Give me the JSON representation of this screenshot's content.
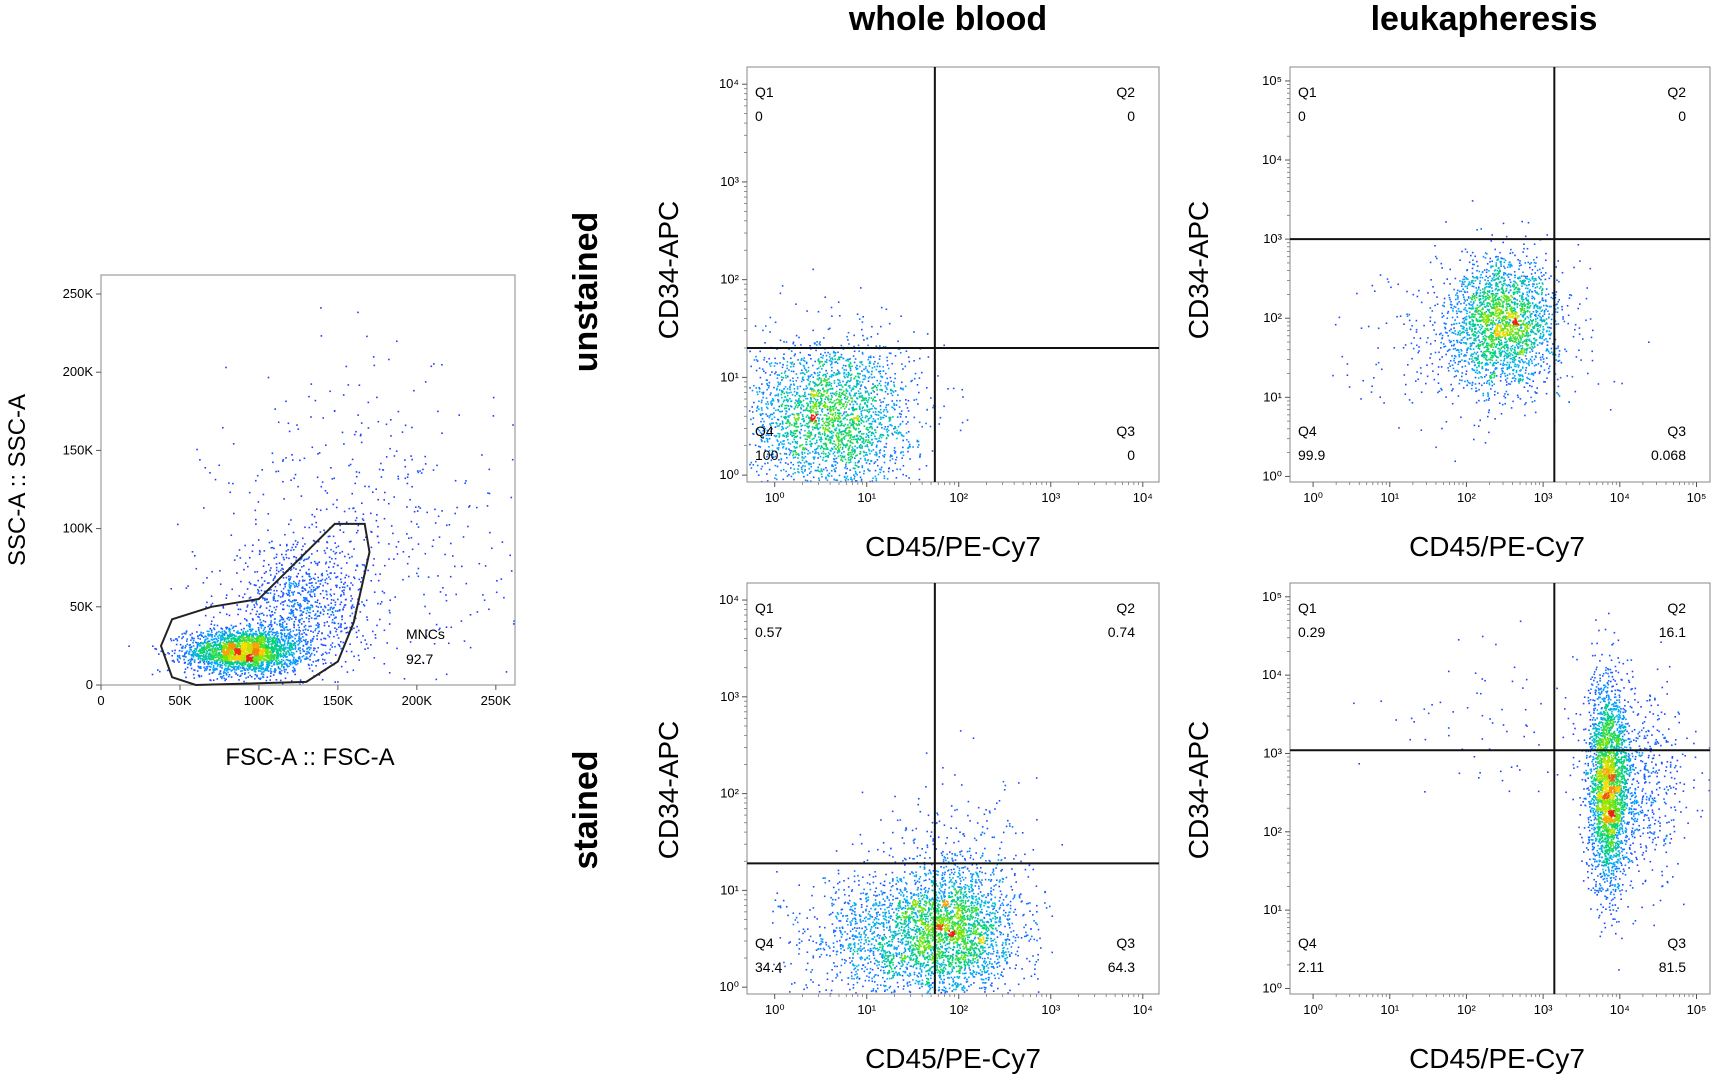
{
  "column_headers": [
    "whole blood",
    "leukapheresis"
  ],
  "row_headers": [
    "unstained",
    "stained"
  ],
  "chart_data": [
    {
      "type": "scatter",
      "id": "gate",
      "xlabel": "FSC-A :: FSC-A",
      "ylabel": "SSC-A :: SSC-A",
      "xlim": [
        0,
        262144
      ],
      "ylim": [
        0,
        262144
      ],
      "xticks": [
        0,
        50000,
        100000,
        150000,
        200000,
        250000
      ],
      "xticklabels": [
        "0",
        "50K",
        "100K",
        "150K",
        "200K",
        "250K"
      ],
      "yticks": [
        0,
        50000,
        100000,
        150000,
        200000,
        250000
      ],
      "yticklabels": [
        "0",
        "50K",
        "100K",
        "150K",
        "200K",
        "250K"
      ],
      "gate": {
        "name": "MNCs",
        "value": "92.7",
        "polygon": [
          [
            45000,
            5000
          ],
          [
            38000,
            25000
          ],
          [
            45000,
            42000
          ],
          [
            70000,
            50000
          ],
          [
            100000,
            55000
          ],
          [
            130000,
            85000
          ],
          [
            148000,
            103000
          ],
          [
            167000,
            103000
          ],
          [
            170000,
            85000
          ],
          [
            160000,
            40000
          ],
          [
            150000,
            15000
          ],
          [
            130000,
            2000
          ],
          [
            60000,
            0
          ]
        ]
      },
      "points": {
        "clusters": [
          {
            "x": 90000,
            "y": 22000,
            "sx": 18000,
            "sy": 7000,
            "n": 2600
          },
          {
            "x": 125000,
            "y": 50000,
            "sx": 22000,
            "sy": 20000,
            "n": 900
          },
          {
            "x": 170000,
            "y": 90000,
            "sx": 50000,
            "sy": 55000,
            "n": 500
          }
        ]
      }
    },
    {
      "type": "scatter",
      "id": "wb-unstained",
      "xlabel": "CD45/PE-Cy7",
      "ylabel": "CD34-APC",
      "log_scale": true,
      "xlim": [
        0.5,
        15000
      ],
      "ylim": [
        0.85,
        15000
      ],
      "xticks": [
        1,
        10,
        100,
        1000,
        10000
      ],
      "yticks": [
        1,
        10,
        100,
        1000,
        10000
      ],
      "gate_x": 55,
      "gate_y": 20,
      "quadrants": [
        {
          "name": "Q1",
          "value": "0",
          "pos": "top-left"
        },
        {
          "name": "Q2",
          "value": "0",
          "pos": "top-right"
        },
        {
          "name": "Q3",
          "value": "0",
          "pos": "bottom-right"
        },
        {
          "name": "Q4",
          "value": "100",
          "pos": "bottom-left"
        }
      ],
      "points": {
        "clusters": [
          {
            "x": 4,
            "y": 4,
            "sx": 0.45,
            "sy": 0.4,
            "n": 2600
          }
        ]
      }
    },
    {
      "type": "scatter",
      "id": "lk-unstained",
      "xlabel": "CD45/PE-Cy7",
      "ylabel": "CD34-APC",
      "log_scale": true,
      "xlim": [
        0.5,
        150000
      ],
      "ylim": [
        0.85,
        150000
      ],
      "xticks": [
        1,
        10,
        100,
        1000,
        10000,
        100000
      ],
      "yticks": [
        1,
        10,
        100,
        1000,
        10000,
        100000
      ],
      "gate_x": 1400,
      "gate_y": 1000,
      "quadrants": [
        {
          "name": "Q1",
          "value": "0",
          "pos": "top-left"
        },
        {
          "name": "Q2",
          "value": "0",
          "pos": "top-right"
        },
        {
          "name": "Q3",
          "value": "0.068",
          "pos": "bottom-right"
        },
        {
          "name": "Q4",
          "value": "99.9",
          "pos": "bottom-left"
        }
      ],
      "points": {
        "clusters": [
          {
            "x": 300,
            "y": 90,
            "sx": 0.35,
            "sy": 0.4,
            "n": 2200
          },
          {
            "x": 120,
            "y": 40,
            "sx": 0.8,
            "sy": 0.5,
            "n": 300
          }
        ]
      }
    },
    {
      "type": "scatter",
      "id": "wb-stained",
      "xlabel": "CD45/PE-Cy7",
      "ylabel": "CD34-APC",
      "log_scale": true,
      "xlim": [
        0.5,
        15000
      ],
      "ylim": [
        0.85,
        15000
      ],
      "xticks": [
        1,
        10,
        100,
        1000,
        10000
      ],
      "yticks": [
        1,
        10,
        100,
        1000,
        10000
      ],
      "gate_x": 55,
      "gate_y": 19,
      "quadrants": [
        {
          "name": "Q1",
          "value": "0.57",
          "pos": "top-left"
        },
        {
          "name": "Q2",
          "value": "0.74",
          "pos": "top-right"
        },
        {
          "name": "Q3",
          "value": "64.3",
          "pos": "bottom-right"
        },
        {
          "name": "Q4",
          "value": "34.4",
          "pos": "bottom-left"
        }
      ],
      "points": {
        "clusters": [
          {
            "x": 90,
            "y": 4,
            "sx": 0.35,
            "sy": 0.35,
            "n": 2200
          },
          {
            "x": 20,
            "y": 3,
            "sx": 0.5,
            "sy": 0.35,
            "n": 1400
          },
          {
            "x": 80,
            "y": 30,
            "sx": 0.5,
            "sy": 0.4,
            "n": 150
          }
        ]
      }
    },
    {
      "type": "scatter",
      "id": "lk-stained",
      "xlabel": "CD45/PE-Cy7",
      "ylabel": "CD34-APC",
      "log_scale": true,
      "xlim": [
        0.5,
        150000
      ],
      "ylim": [
        0.85,
        150000
      ],
      "xticks": [
        1,
        10,
        100,
        1000,
        10000,
        100000
      ],
      "yticks": [
        1,
        10,
        100,
        1000,
        10000,
        100000
      ],
      "gate_x": 1400,
      "gate_y": 1100,
      "quadrants": [
        {
          "name": "Q1",
          "value": "0.29",
          "pos": "top-left"
        },
        {
          "name": "Q2",
          "value": "16.1",
          "pos": "top-right"
        },
        {
          "name": "Q3",
          "value": "81.5",
          "pos": "bottom-right"
        },
        {
          "name": "Q4",
          "value": "2.11",
          "pos": "bottom-left"
        }
      ],
      "points": {
        "clusters": [
          {
            "x": 7000,
            "y": 400,
            "sx": 0.13,
            "sy": 0.65,
            "n": 2600
          },
          {
            "x": 15000,
            "y": 400,
            "sx": 0.35,
            "sy": 0.6,
            "n": 700
          },
          {
            "x": 300,
            "y": 3000,
            "sx": 0.7,
            "sy": 0.5,
            "n": 70
          }
        ]
      }
    }
  ]
}
